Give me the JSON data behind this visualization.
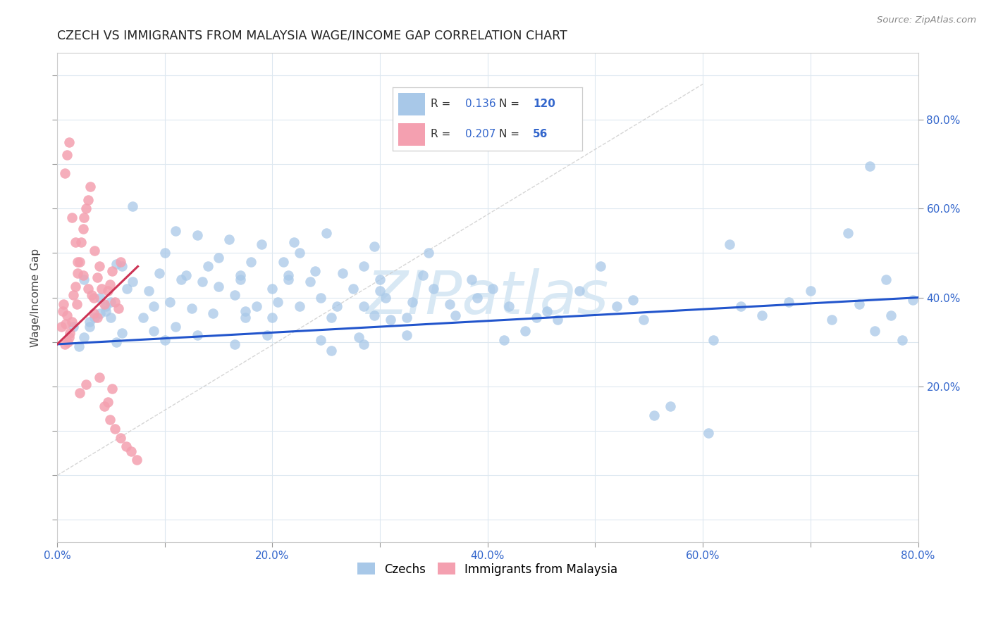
{
  "title": "CZECH VS IMMIGRANTS FROM MALAYSIA WAGE/INCOME GAP CORRELATION CHART",
  "source": "Source: ZipAtlas.com",
  "ylabel": "Wage/Income Gap",
  "xlim": [
    0.0,
    0.8
  ],
  "ylim": [
    -0.15,
    0.95
  ],
  "blue_color": "#a8c8e8",
  "pink_color": "#f4a0b0",
  "blue_line_color": "#2255cc",
  "pink_line_color": "#cc3355",
  "ref_line_color": "#cccccc",
  "watermark_color": "#d8e8f4",
  "R_blue": 0.136,
  "N_blue": 120,
  "R_pink": 0.207,
  "N_pink": 56,
  "legend_blue_label": "Czechs",
  "legend_pink_label": "Immigrants from Malaysia",
  "blue_dots_x": [
    0.015,
    0.025,
    0.035,
    0.045,
    0.02,
    0.03,
    0.04,
    0.05,
    0.055,
    0.06,
    0.065,
    0.07,
    0.055,
    0.045,
    0.03,
    0.025,
    0.05,
    0.06,
    0.07,
    0.04,
    0.08,
    0.09,
    0.1,
    0.11,
    0.09,
    0.085,
    0.095,
    0.1,
    0.115,
    0.105,
    0.12,
    0.13,
    0.125,
    0.11,
    0.135,
    0.14,
    0.15,
    0.145,
    0.13,
    0.15,
    0.16,
    0.17,
    0.165,
    0.175,
    0.18,
    0.185,
    0.165,
    0.17,
    0.175,
    0.19,
    0.2,
    0.21,
    0.22,
    0.205,
    0.195,
    0.215,
    0.225,
    0.2,
    0.215,
    0.225,
    0.24,
    0.25,
    0.245,
    0.26,
    0.235,
    0.255,
    0.245,
    0.255,
    0.265,
    0.275,
    0.285,
    0.295,
    0.285,
    0.3,
    0.28,
    0.295,
    0.285,
    0.31,
    0.3,
    0.305,
    0.325,
    0.34,
    0.33,
    0.35,
    0.325,
    0.345,
    0.365,
    0.385,
    0.37,
    0.39,
    0.405,
    0.42,
    0.415,
    0.445,
    0.435,
    0.455,
    0.485,
    0.505,
    0.52,
    0.465,
    0.535,
    0.555,
    0.57,
    0.545,
    0.605,
    0.625,
    0.635,
    0.61,
    0.655,
    0.68,
    0.7,
    0.72,
    0.735,
    0.755,
    0.745,
    0.77,
    0.76,
    0.785,
    0.795,
    0.775
  ],
  "blue_dots_y": [
    0.335,
    0.31,
    0.355,
    0.38,
    0.29,
    0.335,
    0.4,
    0.355,
    0.3,
    0.32,
    0.42,
    0.605,
    0.475,
    0.37,
    0.345,
    0.44,
    0.39,
    0.47,
    0.435,
    0.365,
    0.355,
    0.38,
    0.5,
    0.55,
    0.325,
    0.415,
    0.455,
    0.305,
    0.44,
    0.39,
    0.45,
    0.54,
    0.375,
    0.335,
    0.435,
    0.47,
    0.425,
    0.365,
    0.315,
    0.49,
    0.53,
    0.45,
    0.405,
    0.355,
    0.48,
    0.38,
    0.295,
    0.44,
    0.37,
    0.52,
    0.42,
    0.48,
    0.525,
    0.39,
    0.315,
    0.45,
    0.38,
    0.355,
    0.44,
    0.5,
    0.46,
    0.545,
    0.4,
    0.38,
    0.435,
    0.355,
    0.305,
    0.28,
    0.455,
    0.42,
    0.47,
    0.515,
    0.38,
    0.44,
    0.31,
    0.36,
    0.295,
    0.35,
    0.415,
    0.4,
    0.355,
    0.45,
    0.39,
    0.42,
    0.315,
    0.5,
    0.385,
    0.44,
    0.36,
    0.4,
    0.42,
    0.38,
    0.305,
    0.355,
    0.325,
    0.37,
    0.415,
    0.47,
    0.38,
    0.35,
    0.395,
    0.135,
    0.155,
    0.35,
    0.095,
    0.52,
    0.38,
    0.305,
    0.36,
    0.39,
    0.415,
    0.35,
    0.545,
    0.695,
    0.385,
    0.44,
    0.325,
    0.305,
    0.395,
    0.36
  ],
  "pink_dots_x": [
    0.004,
    0.007,
    0.009,
    0.011,
    0.005,
    0.008,
    0.01,
    0.006,
    0.012,
    0.014,
    0.017,
    0.019,
    0.015,
    0.021,
    0.024,
    0.018,
    0.022,
    0.027,
    0.025,
    0.029,
    0.031,
    0.034,
    0.032,
    0.037,
    0.035,
    0.039,
    0.041,
    0.044,
    0.037,
    0.049,
    0.047,
    0.051,
    0.054,
    0.057,
    0.059,
    0.009,
    0.011,
    0.007,
    0.014,
    0.017,
    0.019,
    0.024,
    0.029,
    0.034,
    0.021,
    0.027,
    0.039,
    0.044,
    0.049,
    0.054,
    0.059,
    0.064,
    0.069,
    0.074,
    0.047,
    0.051
  ],
  "pink_dots_y": [
    0.335,
    0.295,
    0.36,
    0.31,
    0.37,
    0.34,
    0.3,
    0.385,
    0.32,
    0.345,
    0.425,
    0.455,
    0.405,
    0.48,
    0.555,
    0.385,
    0.525,
    0.6,
    0.58,
    0.62,
    0.65,
    0.365,
    0.405,
    0.445,
    0.505,
    0.47,
    0.42,
    0.385,
    0.355,
    0.43,
    0.415,
    0.46,
    0.39,
    0.375,
    0.48,
    0.72,
    0.75,
    0.68,
    0.58,
    0.525,
    0.48,
    0.45,
    0.42,
    0.4,
    0.185,
    0.205,
    0.22,
    0.155,
    0.125,
    0.105,
    0.085,
    0.065,
    0.055,
    0.035,
    0.165,
    0.195
  ],
  "background_color": "#ffffff",
  "grid_color": "#dde8f0",
  "blue_trend_x0": 0.0,
  "blue_trend_y0": 0.295,
  "blue_trend_x1": 0.8,
  "blue_trend_y1": 0.4,
  "pink_trend_x0": 0.0,
  "pink_trend_y0": 0.295,
  "pink_trend_x1": 0.075,
  "pink_trend_y1": 0.47,
  "ref_line_x0": 0.0,
  "ref_line_y0": 0.0,
  "ref_line_x1": 0.6,
  "ref_line_y1": 0.88
}
